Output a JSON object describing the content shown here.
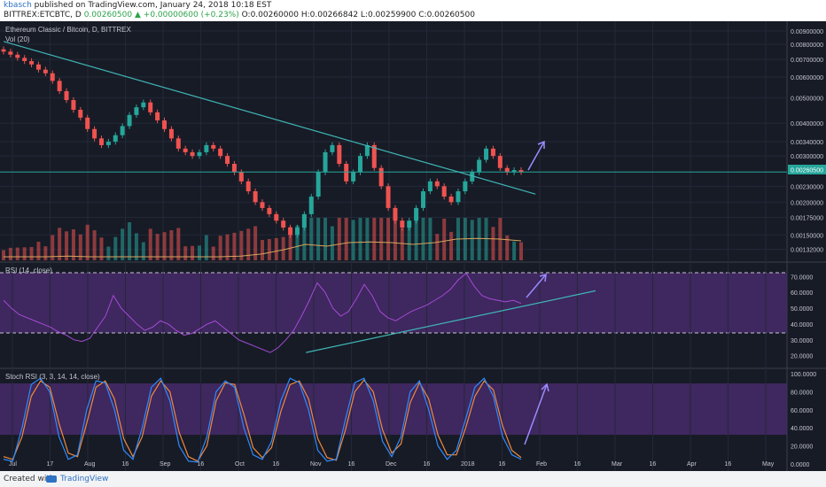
{
  "header": {
    "author": "kbasch",
    "published": "published on TradingView.com, January 24, 2018 10:18 EST",
    "symbol": "BITTREX:ETCBTC, D",
    "last": "0.00260500",
    "change": "+0.00000600 (+0.23%)",
    "o": "O:0.00260000",
    "h": "H:0.00266842",
    "l": "L:0.00259900",
    "c": "C:0.00260500"
  },
  "main_panel": {
    "title": "Ethereum Classic / Bitcoin, D, BITTREX",
    "vol_label": "Vol (20)",
    "price_label": "0.00260500"
  },
  "rsi_panel": {
    "title": "RSI (14, close)"
  },
  "stoch_panel": {
    "title": "Stoch RSI (3, 3, 14, 14, close)"
  },
  "footer": {
    "created": "Created with",
    "brand": "TradingView"
  },
  "colors": {
    "background": "#171b26",
    "up": "#26a69a",
    "down": "#ef5350",
    "trendline": "#3fb6b6",
    "hline": "#26a69a",
    "rsi_line": "#a44bd6",
    "rsi_band": "#4a2a6e",
    "stoch_k": "#2e8bff",
    "stoch_d": "#f08a3c",
    "arrow": "#9a8bff"
  },
  "chart_data": [
    {
      "type": "candlestick",
      "title": "Ethereum Classic / Bitcoin, D, BITTREX",
      "x_ticks": [
        "Jul",
        "17",
        "Aug",
        "16",
        "Sep",
        "16",
        "Oct",
        "16",
        "Nov",
        "16",
        "Dec",
        "16",
        "2018",
        "16",
        "Feb",
        "16",
        "Mar",
        "16",
        "Apr",
        "16",
        "May"
      ],
      "y_ticks": [
        "0.00900000",
        "0.00800000",
        "0.00700000",
        "0.00600000",
        "0.00500000",
        "0.00400000",
        "0.00340000",
        "0.00300000",
        "0.00230000",
        "0.00200000",
        "0.00175000",
        "0.00150000",
        "0.00132000"
      ],
      "y_scale": "log",
      "last_price": 0.002605,
      "close_series": [
        0.0075,
        0.0073,
        0.0071,
        0.0069,
        0.0067,
        0.0064,
        0.0062,
        0.0058,
        0.0053,
        0.0049,
        0.0045,
        0.0042,
        0.0038,
        0.0035,
        0.0033,
        0.0034,
        0.0036,
        0.0039,
        0.0043,
        0.0046,
        0.0048,
        0.0044,
        0.0041,
        0.0038,
        0.0035,
        0.0032,
        0.0031,
        0.003,
        0.0031,
        0.0033,
        0.0032,
        0.003,
        0.0028,
        0.0026,
        0.0024,
        0.0022,
        0.002,
        0.0019,
        0.0018,
        0.0017,
        0.0016,
        0.0015,
        0.0016,
        0.0018,
        0.0021,
        0.0026,
        0.0031,
        0.0033,
        0.0028,
        0.0024,
        0.0026,
        0.003,
        0.0033,
        0.0027,
        0.0023,
        0.0019,
        0.0017,
        0.0016,
        0.0017,
        0.0019,
        0.0022,
        0.0024,
        0.0023,
        0.0021,
        0.002,
        0.0022,
        0.0024,
        0.0026,
        0.0029,
        0.0032,
        0.003,
        0.0027,
        0.0026,
        0.00265,
        0.002605
      ],
      "trendline": [
        [
          0,
          0.0082
        ],
        [
          73,
          0.00225
        ]
      ],
      "volume_ma": [
        0.1,
        0.1,
        0.1,
        0.12,
        0.1,
        0.1,
        0.1,
        0.1,
        0.1,
        0.1,
        0.1,
        0.12,
        0.18,
        0.3,
        0.45,
        0.4,
        0.5,
        0.52,
        0.5,
        0.45,
        0.5,
        0.6,
        0.62,
        0.6,
        0.55
      ]
    },
    {
      "type": "line",
      "title": "RSI (14, close)",
      "y_ticks": [
        "70.0000",
        "60.0000",
        "50.0000",
        "40.0000",
        "30.0000",
        "20.0000"
      ],
      "levels": [
        70,
        30
      ],
      "series": [
        {
          "values": [
            55,
            50,
            46,
            44,
            42,
            40,
            38,
            35,
            33,
            30,
            29,
            31,
            38,
            45,
            58,
            50,
            45,
            40,
            36,
            38,
            42,
            40,
            36,
            33,
            34,
            37,
            40,
            42,
            38,
            34,
            30,
            28,
            26,
            24,
            22,
            25,
            30,
            36,
            45,
            55,
            66,
            60,
            50,
            45,
            48,
            56,
            65,
            58,
            48,
            44,
            42,
            45,
            48,
            50,
            52,
            55,
            58,
            62,
            68,
            72,
            64,
            58,
            56,
            55,
            54,
            55,
            53
          ]
        }
      ],
      "trendline": [
        [
          25,
          22
        ],
        [
          70,
          61
        ]
      ]
    },
    {
      "type": "line",
      "title": "Stoch RSI (3, 3, 14, 14, close)",
      "y_ticks": [
        "100.0000",
        "80.0000",
        "60.0000",
        "40.0000",
        "20.0000",
        "0.0000"
      ],
      "band": [
        20,
        80
      ],
      "series": [
        {
          "values": [
            5,
            3,
            40,
            88,
            95,
            80,
            30,
            5,
            10,
            60,
            92,
            90,
            60,
            15,
            5,
            40,
            85,
            95,
            70,
            20,
            3,
            2,
            30,
            80,
            92,
            85,
            40,
            10,
            5,
            25,
            70,
            95,
            90,
            60,
            15,
            3,
            5,
            50,
            90,
            95,
            70,
            25,
            8,
            30,
            80,
            92,
            60,
            20,
            5,
            15,
            50,
            85,
            95,
            75,
            30,
            10,
            5
          ]
        },
        {
          "values": [
            8,
            5,
            30,
            75,
            92,
            85,
            45,
            12,
            8,
            45,
            85,
            92,
            72,
            28,
            8,
            30,
            75,
            92,
            80,
            35,
            8,
            3,
            20,
            70,
            90,
            88,
            55,
            18,
            7,
            18,
            58,
            88,
            92,
            72,
            28,
            7,
            4,
            38,
            80,
            93,
            80,
            38,
            12,
            22,
            68,
            90,
            72,
            32,
            10,
            10,
            40,
            75,
            92,
            82,
            42,
            15,
            7
          ]
        }
      ]
    }
  ]
}
